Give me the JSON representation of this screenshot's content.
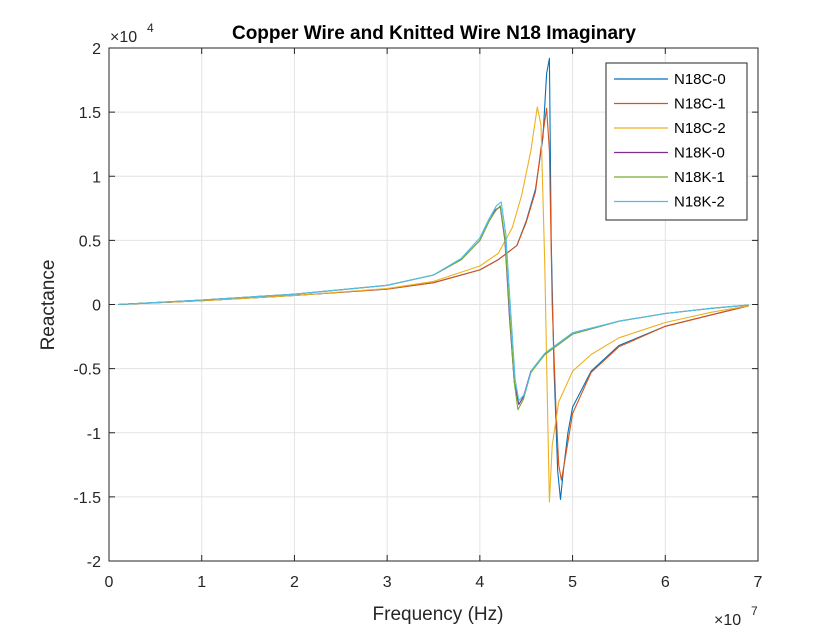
{
  "chart_data": {
    "type": "line",
    "title": "Copper Wire and Knitted Wire N18 Imaginary",
    "xlabel": "Frequency (Hz)",
    "ylabel": "Reactance",
    "x_multiplier": {
      "base": "×10",
      "exp": "7"
    },
    "y_multiplier": {
      "base": "×10",
      "exp": "4"
    },
    "xlim": [
      0,
      70000000
    ],
    "ylim": [
      -20000,
      20000
    ],
    "xticks": [
      0,
      10000000,
      20000000,
      30000000,
      40000000,
      50000000,
      60000000,
      70000000
    ],
    "xtick_labels": [
      "0",
      "1",
      "2",
      "3",
      "4",
      "5",
      "6",
      "7"
    ],
    "yticks": [
      -20000,
      -15000,
      -10000,
      -5000,
      0,
      5000,
      10000,
      15000,
      20000
    ],
    "ytick_labels": [
      "-2",
      "-1.5",
      "-1",
      "-0.5",
      "0",
      "0.5",
      "1",
      "1.5",
      "2"
    ],
    "grid": true,
    "legend_position": "top-right",
    "series": [
      {
        "name": "N18C-0",
        "color": "#0072BD",
        "points": [
          [
            1000000,
            0
          ],
          [
            10000000,
            300
          ],
          [
            20000000,
            700
          ],
          [
            30000000,
            1200
          ],
          [
            35000000,
            1700
          ],
          [
            40000000,
            2700
          ],
          [
            42000000,
            3500
          ],
          [
            44000000,
            4600
          ],
          [
            45000000,
            6500
          ],
          [
            46000000,
            9000
          ],
          [
            46800000,
            13000
          ],
          [
            47200000,
            18000
          ],
          [
            47500000,
            19200
          ],
          [
            47700000,
            5000
          ],
          [
            48000000,
            -5000
          ],
          [
            48400000,
            -13000
          ],
          [
            48700000,
            -15200
          ],
          [
            49000000,
            -13000
          ],
          [
            49500000,
            -10000
          ],
          [
            50000000,
            -8000
          ],
          [
            52000000,
            -5200
          ],
          [
            55000000,
            -3200
          ],
          [
            60000000,
            -1700
          ],
          [
            65000000,
            -800
          ],
          [
            69000000,
            -100
          ]
        ]
      },
      {
        "name": "N18C-1",
        "color": "#D95319",
        "points": [
          [
            1000000,
            0
          ],
          [
            10000000,
            300
          ],
          [
            20000000,
            700
          ],
          [
            30000000,
            1200
          ],
          [
            35000000,
            1700
          ],
          [
            40000000,
            2700
          ],
          [
            42000000,
            3500
          ],
          [
            44000000,
            4600
          ],
          [
            45000000,
            6400
          ],
          [
            46000000,
            8800
          ],
          [
            46700000,
            12800
          ],
          [
            47200000,
            15300
          ],
          [
            47500000,
            12000
          ],
          [
            47800000,
            0
          ],
          [
            48200000,
            -8000
          ],
          [
            48500000,
            -12500
          ],
          [
            48800000,
            -13700
          ],
          [
            49200000,
            -12000
          ],
          [
            50000000,
            -8500
          ],
          [
            52000000,
            -5300
          ],
          [
            55000000,
            -3300
          ],
          [
            60000000,
            -1700
          ],
          [
            65000000,
            -800
          ],
          [
            69000000,
            -100
          ]
        ]
      },
      {
        "name": "N18C-2",
        "color": "#EDB120",
        "points": [
          [
            1000000,
            0
          ],
          [
            10000000,
            300
          ],
          [
            20000000,
            700
          ],
          [
            30000000,
            1250
          ],
          [
            35000000,
            1800
          ],
          [
            40000000,
            3000
          ],
          [
            42000000,
            4000
          ],
          [
            43500000,
            6000
          ],
          [
            44500000,
            8500
          ],
          [
            45500000,
            12000
          ],
          [
            46200000,
            15400
          ],
          [
            46600000,
            14000
          ],
          [
            47000000,
            3000
          ],
          [
            47300000,
            -8000
          ],
          [
            47500000,
            -15400
          ],
          [
            47800000,
            -11000
          ],
          [
            48500000,
            -7600
          ],
          [
            50000000,
            -5200
          ],
          [
            52000000,
            -3900
          ],
          [
            55000000,
            -2600
          ],
          [
            60000000,
            -1400
          ],
          [
            65000000,
            -600
          ],
          [
            69000000,
            -100
          ]
        ]
      },
      {
        "name": "N18K-0",
        "color": "#7E2F8E",
        "points": [
          [
            1000000,
            0
          ],
          [
            10000000,
            350
          ],
          [
            20000000,
            800
          ],
          [
            30000000,
            1500
          ],
          [
            35000000,
            2300
          ],
          [
            38000000,
            3500
          ],
          [
            40000000,
            5000
          ],
          [
            41000000,
            6500
          ],
          [
            41700000,
            7400
          ],
          [
            42200000,
            7600
          ],
          [
            42700000,
            5000
          ],
          [
            43200000,
            -1000
          ],
          [
            43700000,
            -6000
          ],
          [
            44200000,
            -7800
          ],
          [
            44700000,
            -7200
          ],
          [
            45500000,
            -5200
          ],
          [
            47000000,
            -3900
          ],
          [
            50000000,
            -2300
          ],
          [
            55000000,
            -1300
          ],
          [
            60000000,
            -700
          ],
          [
            65000000,
            -300
          ],
          [
            69000000,
            -50
          ]
        ]
      },
      {
        "name": "N18K-1",
        "color": "#77AC30",
        "points": [
          [
            1000000,
            0
          ],
          [
            10000000,
            350
          ],
          [
            20000000,
            800
          ],
          [
            30000000,
            1500
          ],
          [
            35000000,
            2300
          ],
          [
            38000000,
            3500
          ],
          [
            40000000,
            5000
          ],
          [
            41000000,
            6500
          ],
          [
            41700000,
            7300
          ],
          [
            42200000,
            7700
          ],
          [
            42700000,
            5200
          ],
          [
            43200000,
            -500
          ],
          [
            43700000,
            -6000
          ],
          [
            44100000,
            -8200
          ],
          [
            44700000,
            -7400
          ],
          [
            45500000,
            -5300
          ],
          [
            47000000,
            -3900
          ],
          [
            50000000,
            -2300
          ],
          [
            55000000,
            -1300
          ],
          [
            60000000,
            -700
          ],
          [
            65000000,
            -300
          ],
          [
            69000000,
            -50
          ]
        ]
      },
      {
        "name": "N18K-2",
        "color": "#4DBEEE",
        "points": [
          [
            1000000,
            0
          ],
          [
            10000000,
            350
          ],
          [
            20000000,
            800
          ],
          [
            30000000,
            1500
          ],
          [
            35000000,
            2300
          ],
          [
            38000000,
            3600
          ],
          [
            40000000,
            5200
          ],
          [
            41000000,
            6700
          ],
          [
            41800000,
            7700
          ],
          [
            42300000,
            8000
          ],
          [
            42800000,
            5500
          ],
          [
            43300000,
            -300
          ],
          [
            43800000,
            -5800
          ],
          [
            44200000,
            -7500
          ],
          [
            44800000,
            -7000
          ],
          [
            45600000,
            -5100
          ],
          [
            47000000,
            -3800
          ],
          [
            50000000,
            -2200
          ],
          [
            55000000,
            -1300
          ],
          [
            60000000,
            -700
          ],
          [
            65000000,
            -300
          ],
          [
            69000000,
            -50
          ]
        ]
      }
    ]
  }
}
